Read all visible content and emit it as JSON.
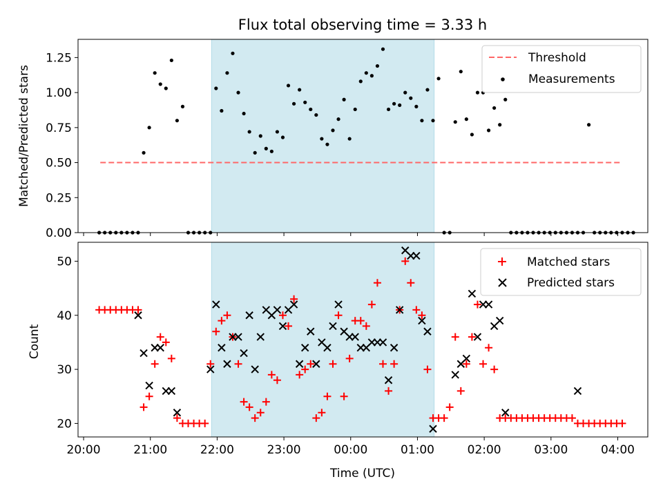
{
  "chart_data": [
    {
      "type": "scatter",
      "title": "Flux total observing time = 3.33 h",
      "ylabel": "Matched/Predicted stars",
      "ylim": [
        0,
        1.38
      ],
      "yticks": [
        "0.00",
        "0.25",
        "0.50",
        "0.75",
        "1.00",
        "1.25"
      ],
      "legend_position": "top-right",
      "observing_window": [
        "21:55",
        "01:15"
      ],
      "observing_window_color": "#add8e6",
      "threshold": {
        "name": "Threshold",
        "value": 0.5,
        "x_range": [
          "20:15",
          "04:03"
        ],
        "style": "dashed",
        "color": "#ff6666"
      },
      "series": [
        {
          "name": "Measurements",
          "color": "#000000",
          "marker": "dot",
          "points": [
            [
              "20:14",
              0
            ],
            [
              "20:19",
              0
            ],
            [
              "20:24",
              0
            ],
            [
              "20:29",
              0
            ],
            [
              "20:34",
              0
            ],
            [
              "20:39",
              0
            ],
            [
              "20:44",
              0
            ],
            [
              "20:49",
              0
            ],
            [
              "20:54",
              0.57
            ],
            [
              "20:59",
              0.75
            ],
            [
              "21:04",
              1.14
            ],
            [
              "21:09",
              1.06
            ],
            [
              "21:14",
              1.03
            ],
            [
              "21:19",
              1.23
            ],
            [
              "21:24",
              0.8
            ],
            [
              "21:29",
              0.9
            ],
            [
              "21:34",
              0
            ],
            [
              "21:39",
              0
            ],
            [
              "21:44",
              0
            ],
            [
              "21:49",
              0
            ],
            [
              "21:54",
              0
            ],
            [
              "21:59",
              1.03
            ],
            [
              "22:04",
              0.87
            ],
            [
              "22:09",
              1.14
            ],
            [
              "22:14",
              1.28
            ],
            [
              "22:19",
              1.0
            ],
            [
              "22:24",
              0.85
            ],
            [
              "22:29",
              0.72
            ],
            [
              "22:34",
              0.57
            ],
            [
              "22:39",
              0.69
            ],
            [
              "22:44",
              0.6
            ],
            [
              "22:49",
              0.58
            ],
            [
              "22:54",
              0.72
            ],
            [
              "22:59",
              0.68
            ],
            [
              "23:04",
              1.05
            ],
            [
              "23:09",
              0.92
            ],
            [
              "23:14",
              1.02
            ],
            [
              "23:19",
              0.93
            ],
            [
              "23:24",
              0.88
            ],
            [
              "23:29",
              0.84
            ],
            [
              "23:34",
              0.67
            ],
            [
              "23:39",
              0.63
            ],
            [
              "23:44",
              0.73
            ],
            [
              "23:49",
              0.81
            ],
            [
              "23:54",
              0.95
            ],
            [
              "23:59",
              0.67
            ],
            [
              "00:04",
              0.88
            ],
            [
              "00:09",
              1.08
            ],
            [
              "00:14",
              1.14
            ],
            [
              "00:19",
              1.12
            ],
            [
              "00:24",
              1.19
            ],
            [
              "00:29",
              1.31
            ],
            [
              "00:34",
              0.88
            ],
            [
              "00:39",
              0.92
            ],
            [
              "00:44",
              0.91
            ],
            [
              "00:49",
              1.0
            ],
            [
              "00:54",
              0.96
            ],
            [
              "00:59",
              0.9
            ],
            [
              "01:04",
              0.8
            ],
            [
              "01:09",
              1.02
            ],
            [
              "01:14",
              0.8
            ],
            [
              "01:19",
              1.1
            ],
            [
              "01:24",
              0
            ],
            [
              "01:29",
              0
            ],
            [
              "01:34",
              0.79
            ],
            [
              "01:39",
              1.15
            ],
            [
              "01:44",
              0.81
            ],
            [
              "01:49",
              0.7
            ],
            [
              "01:54",
              1.0
            ],
            [
              "01:59",
              1.0
            ],
            [
              "02:04",
              0.73
            ],
            [
              "02:09",
              0.89
            ],
            [
              "02:14",
              0.77
            ],
            [
              "02:19",
              0.95
            ],
            [
              "02:24",
              0
            ],
            [
              "02:29",
              0
            ],
            [
              "02:34",
              0
            ],
            [
              "02:39",
              0
            ],
            [
              "02:44",
              0
            ],
            [
              "02:49",
              0
            ],
            [
              "02:54",
              0
            ],
            [
              "02:59",
              0
            ],
            [
              "03:04",
              0
            ],
            [
              "03:09",
              0
            ],
            [
              "03:14",
              0
            ],
            [
              "03:19",
              0
            ],
            [
              "03:24",
              0
            ],
            [
              "03:29",
              0
            ],
            [
              "03:34",
              0.77
            ],
            [
              "03:39",
              0
            ],
            [
              "03:44",
              0
            ],
            [
              "03:49",
              0
            ],
            [
              "03:54",
              0
            ],
            [
              "03:59",
              0
            ],
            [
              "04:04",
              0
            ],
            [
              "04:09",
              0
            ],
            [
              "04:14",
              0
            ]
          ]
        }
      ]
    },
    {
      "type": "scatter",
      "xlabel": "Time (UTC)",
      "ylabel": "Count",
      "ylim": [
        17.5,
        53.5
      ],
      "yticks": [
        "20",
        "30",
        "40",
        "50"
      ],
      "xticks": [
        "20:00",
        "21:00",
        "22:00",
        "23:00",
        "00:00",
        "01:00",
        "02:00",
        "03:00",
        "04:00"
      ],
      "xlim": [
        "19:55",
        "04:27"
      ],
      "legend_position": "top-right",
      "observing_window": [
        "21:55",
        "01:15"
      ],
      "series": [
        {
          "name": "Matched stars",
          "color": "#ff0000",
          "marker": "plus",
          "points": [
            [
              "20:14",
              41
            ],
            [
              "20:19",
              41
            ],
            [
              "20:24",
              41
            ],
            [
              "20:29",
              41
            ],
            [
              "20:34",
              41
            ],
            [
              "20:39",
              41
            ],
            [
              "20:44",
              41
            ],
            [
              "20:49",
              41
            ],
            [
              "20:54",
              23
            ],
            [
              "20:59",
              25
            ],
            [
              "21:04",
              31
            ],
            [
              "21:09",
              36
            ],
            [
              "21:14",
              35
            ],
            [
              "21:19",
              32
            ],
            [
              "21:24",
              21
            ],
            [
              "21:29",
              20
            ],
            [
              "21:34",
              20
            ],
            [
              "21:39",
              20
            ],
            [
              "21:44",
              20
            ],
            [
              "21:49",
              20
            ],
            [
              "21:54",
              31
            ],
            [
              "21:59",
              37
            ],
            [
              "22:04",
              39
            ],
            [
              "22:09",
              40
            ],
            [
              "22:14",
              36
            ],
            [
              "22:19",
              31
            ],
            [
              "22:24",
              24
            ],
            [
              "22:29",
              23
            ],
            [
              "22:34",
              21
            ],
            [
              "22:39",
              22
            ],
            [
              "22:44",
              24
            ],
            [
              "22:49",
              29
            ],
            [
              "22:54",
              28
            ],
            [
              "22:59",
              40
            ],
            [
              "23:04",
              38
            ],
            [
              "23:09",
              43
            ],
            [
              "23:14",
              29
            ],
            [
              "23:19",
              30
            ],
            [
              "23:24",
              31
            ],
            [
              "23:29",
              21
            ],
            [
              "23:34",
              22
            ],
            [
              "23:39",
              25
            ],
            [
              "23:44",
              31
            ],
            [
              "23:49",
              40
            ],
            [
              "23:54",
              25
            ],
            [
              "23:59",
              32
            ],
            [
              "00:04",
              39
            ],
            [
              "00:09",
              39
            ],
            [
              "00:14",
              38
            ],
            [
              "00:19",
              42
            ],
            [
              "00:24",
              46
            ],
            [
              "00:29",
              31
            ],
            [
              "00:34",
              26
            ],
            [
              "00:39",
              31
            ],
            [
              "00:44",
              41
            ],
            [
              "00:49",
              50
            ],
            [
              "00:54",
              46
            ],
            [
              "00:59",
              41
            ],
            [
              "01:04",
              40
            ],
            [
              "01:09",
              30
            ],
            [
              "01:14",
              21
            ],
            [
              "01:19",
              21
            ],
            [
              "01:24",
              21
            ],
            [
              "01:29",
              23
            ],
            [
              "01:34",
              36
            ],
            [
              "01:39",
              26
            ],
            [
              "01:44",
              31
            ],
            [
              "01:49",
              36
            ],
            [
              "01:54",
              42
            ],
            [
              "01:59",
              31
            ],
            [
              "02:04",
              34
            ],
            [
              "02:09",
              30
            ],
            [
              "02:14",
              21
            ],
            [
              "02:19",
              21
            ],
            [
              "02:24",
              21
            ],
            [
              "02:29",
              21
            ],
            [
              "02:34",
              21
            ],
            [
              "02:39",
              21
            ],
            [
              "02:44",
              21
            ],
            [
              "02:49",
              21
            ],
            [
              "02:54",
              21
            ],
            [
              "02:59",
              21
            ],
            [
              "03:04",
              21
            ],
            [
              "03:09",
              21
            ],
            [
              "03:14",
              21
            ],
            [
              "03:19",
              21
            ],
            [
              "03:24",
              20
            ],
            [
              "03:29",
              20
            ],
            [
              "03:34",
              20
            ],
            [
              "03:39",
              20
            ],
            [
              "03:44",
              20
            ],
            [
              "03:49",
              20
            ],
            [
              "03:54",
              20
            ],
            [
              "03:59",
              20
            ],
            [
              "04:04",
              20
            ]
          ]
        },
        {
          "name": "Predicted stars",
          "color": "#000000",
          "marker": "x",
          "points": [
            [
              "20:49",
              40
            ],
            [
              "20:54",
              33
            ],
            [
              "20:59",
              27
            ],
            [
              "21:04",
              34
            ],
            [
              "21:09",
              34
            ],
            [
              "21:14",
              26
            ],
            [
              "21:19",
              26
            ],
            [
              "21:24",
              22
            ],
            [
              "21:54",
              30
            ],
            [
              "21:59",
              42
            ],
            [
              "22:04",
              34
            ],
            [
              "22:09",
              31
            ],
            [
              "22:14",
              36
            ],
            [
              "22:19",
              36
            ],
            [
              "22:24",
              33
            ],
            [
              "22:29",
              40
            ],
            [
              "22:34",
              30
            ],
            [
              "22:39",
              36
            ],
            [
              "22:44",
              41
            ],
            [
              "22:49",
              40
            ],
            [
              "22:54",
              41
            ],
            [
              "22:59",
              38
            ],
            [
              "23:04",
              41
            ],
            [
              "23:09",
              42
            ],
            [
              "23:14",
              31
            ],
            [
              "23:19",
              34
            ],
            [
              "23:24",
              37
            ],
            [
              "23:29",
              31
            ],
            [
              "23:34",
              35
            ],
            [
              "23:39",
              34
            ],
            [
              "23:44",
              38
            ],
            [
              "23:49",
              42
            ],
            [
              "23:54",
              37
            ],
            [
              "23:59",
              36
            ],
            [
              "00:04",
              36
            ],
            [
              "00:09",
              34
            ],
            [
              "00:14",
              34
            ],
            [
              "00:19",
              35
            ],
            [
              "00:24",
              35
            ],
            [
              "00:29",
              35
            ],
            [
              "00:34",
              28
            ],
            [
              "00:39",
              34
            ],
            [
              "00:44",
              41
            ],
            [
              "00:49",
              52
            ],
            [
              "00:54",
              51
            ],
            [
              "00:59",
              51
            ],
            [
              "01:04",
              39
            ],
            [
              "01:09",
              37
            ],
            [
              "01:14",
              19
            ],
            [
              "01:34",
              29
            ],
            [
              "01:39",
              31
            ],
            [
              "01:44",
              32
            ],
            [
              "01:49",
              44
            ],
            [
              "01:54",
              36
            ],
            [
              "01:59",
              42
            ],
            [
              "02:04",
              42
            ],
            [
              "02:09",
              38
            ],
            [
              "02:14",
              39
            ],
            [
              "02:19",
              22
            ],
            [
              "03:24",
              26
            ]
          ]
        }
      ]
    }
  ]
}
